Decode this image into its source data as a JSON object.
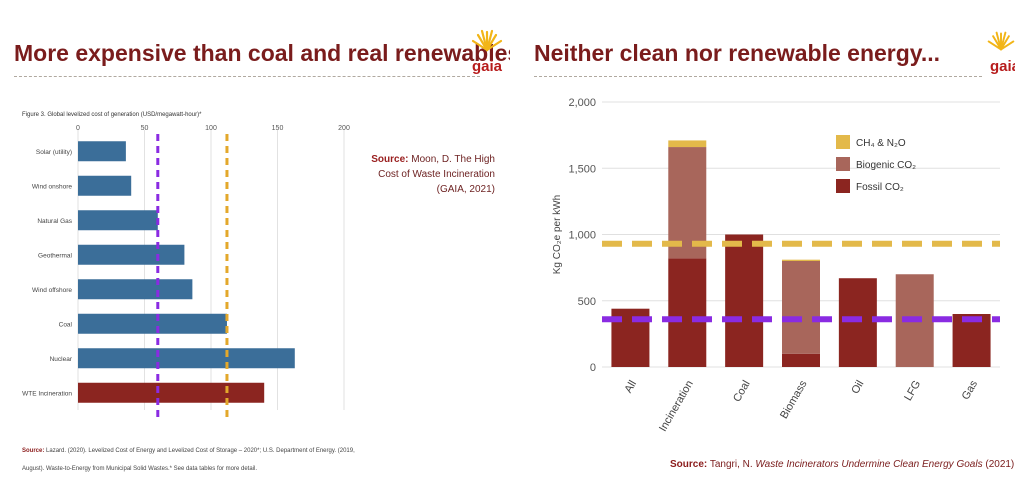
{
  "left_slide": {
    "title": "More expensive than coal and real renewables!",
    "logo_text": "gaia",
    "figure_caption": "Figure 3. Global levelized cost of generation (USD/megawatt-hour)*",
    "source_label": "Source:",
    "source_lines": [
      "Moon, D. The High",
      "Cost of Waste Incineration",
      "(GAIA, 2021)"
    ],
    "footnote_source_label": "Source:",
    "footnote_lines": [
      "Lazard. (2020). Levelized Cost of Energy and Levelized Cost of Storage – 2020*; U.S. Department of Energy. (2019,",
      "August). Waste-to-Energy from Municipal Solid Wastes.* See data tables for more detail."
    ]
  },
  "right_slide": {
    "title": "Neither clean nor renewable energy...",
    "logo_text": "gaia",
    "source_label": "Source:",
    "source_author": "Tangri, N.",
    "source_title": "Waste Incinerators Undermine Clean Energy Goals",
    "source_year": "(2021)"
  },
  "chart_data": [
    {
      "type": "bar",
      "orientation": "horizontal",
      "categories": [
        "Solar (utility)",
        "Wind onshore",
        "Natural Gas",
        "Geothermal",
        "Wind offshore",
        "Coal",
        "Nuclear",
        "WTE Incineration"
      ],
      "values": [
        36,
        40,
        60,
        80,
        86,
        112,
        163,
        140
      ],
      "bar_colors": [
        "#3b6e99",
        "#3b6e99",
        "#3b6e99",
        "#3b6e99",
        "#3b6e99",
        "#3b6e99",
        "#3b6e99",
        "#8b2520"
      ],
      "xlim": [
        0,
        200
      ],
      "xticks": [
        0,
        50,
        100,
        150,
        200
      ],
      "reference_lines": [
        {
          "value": 60,
          "color": "#8a2be2",
          "style": "dashed"
        },
        {
          "value": 112,
          "color": "#e3a82b",
          "style": "dashed"
        }
      ],
      "grid": true
    },
    {
      "type": "bar",
      "stacked": true,
      "categories": [
        "All",
        "Incineration",
        "Coal",
        "Biomass",
        "Oil",
        "LFG",
        "Gas"
      ],
      "series": [
        {
          "name": "Fossil CO₂",
          "color": "#8b2520",
          "values": [
            440,
            820,
            1000,
            100,
            670,
            0,
            400
          ]
        },
        {
          "name": "Biogenic CO₂",
          "color": "#a8665b",
          "values": [
            0,
            840,
            0,
            700,
            0,
            700,
            0
          ]
        },
        {
          "name": "CH₄ & N₂O",
          "color": "#e3b94a",
          "values": [
            0,
            50,
            0,
            10,
            0,
            0,
            0
          ]
        }
      ],
      "ylabel": "Kg CO₂e per kWh",
      "ylim": [
        0,
        2000
      ],
      "yticks": [
        0,
        500,
        1000,
        1500,
        2000
      ],
      "ytick_labels": [
        "0",
        "500",
        "1,000",
        "1,500",
        "2,000"
      ],
      "reference_lines": [
        {
          "value": 930,
          "color": "#e3b94a",
          "style": "dashed"
        },
        {
          "value": 360,
          "color": "#8a2be2",
          "style": "dashed"
        }
      ],
      "legend_position": "top-right",
      "grid": true
    }
  ],
  "colors": {
    "title": "#7a1c1c",
    "blue_bar": "#3b6e99",
    "accent_red": "#8b2520",
    "gold": "#e3b94a",
    "purple": "#8a2be2"
  }
}
